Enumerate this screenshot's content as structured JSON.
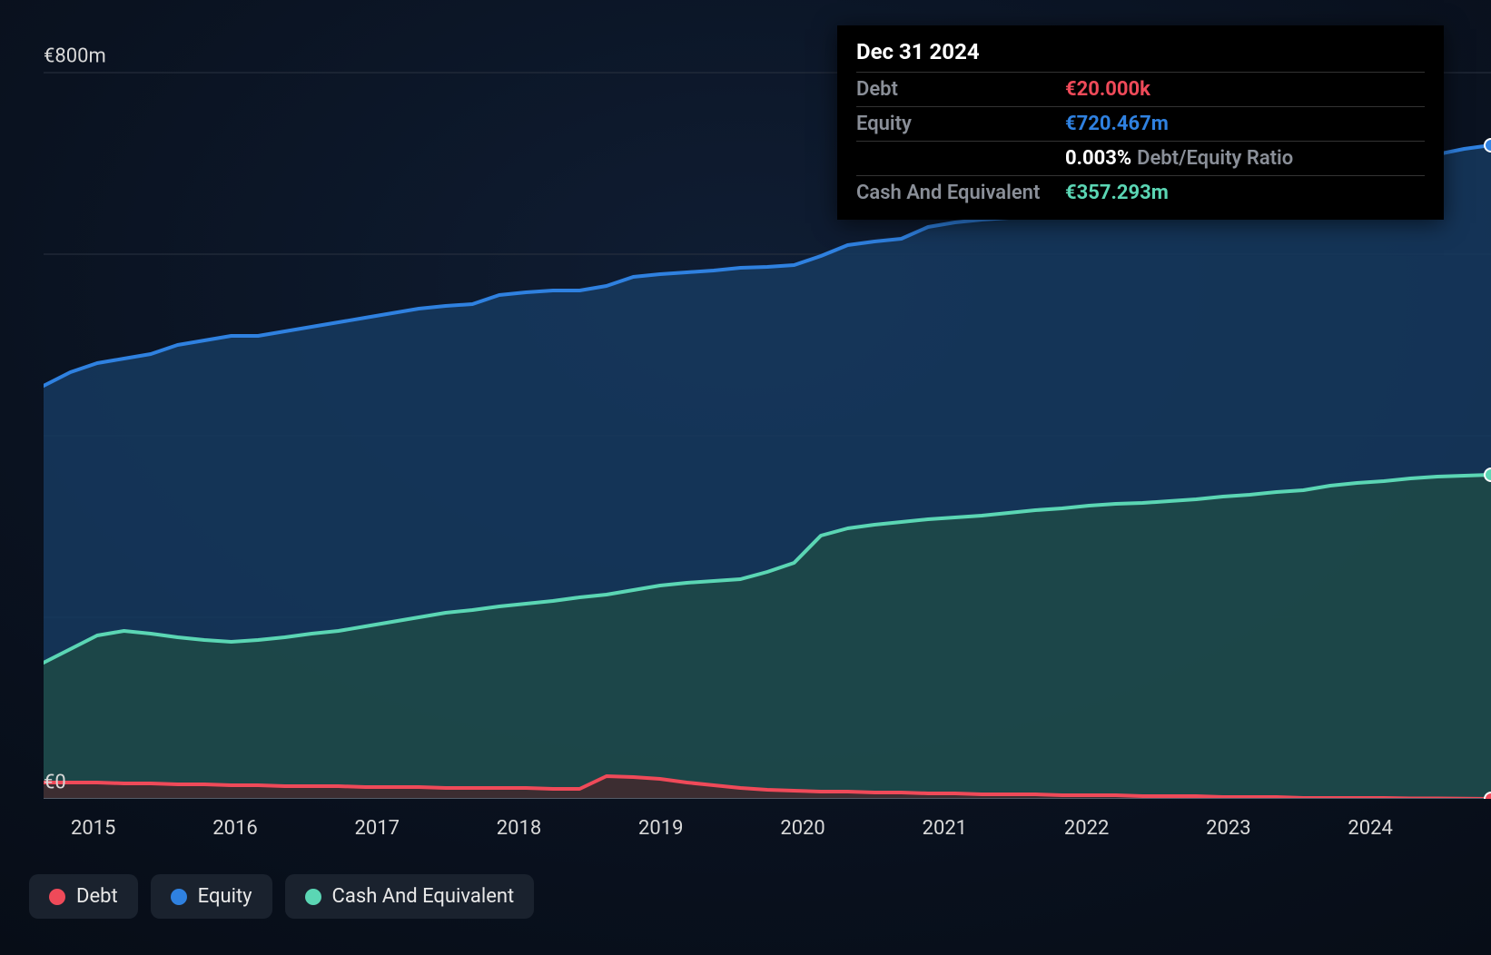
{
  "chart": {
    "type": "area",
    "background_color": "#0a1220",
    "grid_color": "#2a3240",
    "axis_line_color": "#555c68",
    "text_color": "#d8d8d8",
    "label_fontsize": 22,
    "y": {
      "min": 0,
      "max": 850,
      "ticks": [
        {
          "value": 0,
          "label": "€0"
        },
        {
          "value": 200,
          "label": ""
        },
        {
          "value": 400,
          "label": ""
        },
        {
          "value": 600,
          "label": ""
        },
        {
          "value": 800,
          "label": "€800m"
        }
      ]
    },
    "x": {
      "labels": [
        "2015",
        "2016",
        "2017",
        "2018",
        "2019",
        "2020",
        "2021",
        "2022",
        "2023",
        "2024"
      ]
    },
    "series": [
      {
        "id": "equity",
        "label": "Equity",
        "stroke": "#2f81e0",
        "fill": "#163a5f",
        "fill_opacity": 0.85,
        "stroke_width": 4,
        "data": [
          455,
          470,
          480,
          485,
          490,
          500,
          505,
          510,
          510,
          515,
          520,
          525,
          530,
          535,
          540,
          543,
          545,
          555,
          558,
          560,
          560,
          565,
          575,
          578,
          580,
          582,
          585,
          586,
          588,
          598,
          610,
          614,
          617,
          630,
          635,
          638,
          640,
          643,
          645,
          650,
          655,
          658,
          660,
          663,
          670,
          672,
          675,
          678,
          685,
          692,
          700,
          705,
          710,
          716,
          720
        ]
      },
      {
        "id": "cash",
        "label": "Cash And Equivalent",
        "stroke": "#5bd6b4",
        "fill": "#1d4a46",
        "fill_opacity": 0.85,
        "stroke_width": 4,
        "data": [
          150,
          165,
          180,
          185,
          182,
          178,
          175,
          173,
          175,
          178,
          182,
          185,
          190,
          195,
          200,
          205,
          208,
          212,
          215,
          218,
          222,
          225,
          230,
          235,
          238,
          240,
          242,
          250,
          260,
          290,
          298,
          302,
          305,
          308,
          310,
          312,
          315,
          318,
          320,
          323,
          325,
          326,
          328,
          330,
          333,
          335,
          338,
          340,
          345,
          348,
          350,
          353,
          355,
          356,
          357
        ]
      },
      {
        "id": "debt",
        "label": "Debt",
        "stroke": "#ef4a59",
        "fill": "#4a2228",
        "fill_opacity": 0.7,
        "stroke_width": 4,
        "data": [
          18,
          18,
          18,
          17,
          17,
          16,
          16,
          15,
          15,
          14,
          14,
          14,
          13,
          13,
          13,
          12,
          12,
          12,
          12,
          11,
          11,
          25,
          24,
          22,
          18,
          15,
          12,
          10,
          9,
          8,
          8,
          7,
          7,
          6,
          6,
          5,
          5,
          5,
          4,
          4,
          4,
          3,
          3,
          3,
          2,
          2,
          2,
          1,
          1,
          1,
          1,
          0.5,
          0.5,
          0.2,
          0.02
        ]
      }
    ],
    "endpoint_markers": {
      "radius": 7,
      "ring_width": 2,
      "ring_color": "#ffffff"
    }
  },
  "legend": {
    "items": [
      {
        "id": "debt",
        "label": "Debt",
        "color": "#ef4a59"
      },
      {
        "id": "equity",
        "label": "Equity",
        "color": "#2f81e0"
      },
      {
        "id": "cash",
        "label": "Cash And Equivalent",
        "color": "#5bd6b4"
      }
    ],
    "bg": "#1a222e",
    "fontsize": 22
  },
  "tooltip": {
    "title": "Dec 31 2024",
    "rows": [
      {
        "key": "Debt",
        "value": "€20.000k",
        "color": "#ef4a59"
      },
      {
        "key": "Equity",
        "value": "€720.467m",
        "color": "#2f81e0"
      },
      {
        "key": "",
        "ratio_pct": "0.003%",
        "ratio_label": "Debt/Equity Ratio"
      },
      {
        "key": "Cash And Equivalent",
        "value": "€357.293m",
        "color": "#5bd6b4"
      }
    ],
    "bg": "#000000",
    "border": "#333333",
    "title_fontsize": 24,
    "row_fontsize": 22
  }
}
